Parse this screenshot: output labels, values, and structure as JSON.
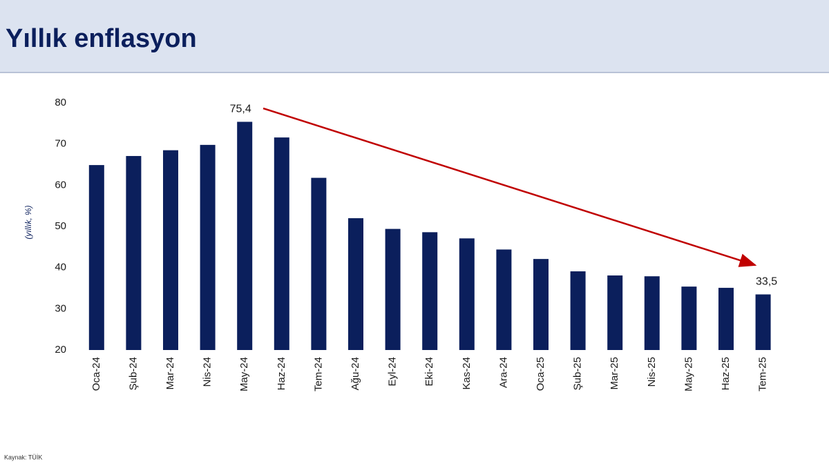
{
  "header": {
    "title": "Yıllık enflasyon"
  },
  "chart_data": {
    "type": "bar",
    "y_axis_label": "(yıllık, %)",
    "categories": [
      "Oca-24",
      "Şub-24",
      "Mar-24",
      "Nis-24",
      "May-24",
      "Haz-24",
      "Tem-24",
      "Ağu-24",
      "Eyl-24",
      "Eki-24",
      "Kas-24",
      "Ara-24",
      "Oca-25",
      "Şub-25",
      "Mar-25",
      "Nis-25",
      "May-25",
      "Haz-25",
      "Tem-25"
    ],
    "values": [
      64.9,
      67.1,
      68.5,
      69.8,
      75.4,
      71.6,
      61.8,
      52.0,
      49.4,
      48.6,
      47.1,
      44.4,
      42.1,
      39.1,
      38.1,
      37.9,
      35.4,
      35.1,
      33.5
    ],
    "value_labels": [
      null,
      null,
      null,
      null,
      "75,4",
      null,
      null,
      null,
      null,
      null,
      null,
      null,
      null,
      null,
      null,
      null,
      null,
      null,
      "33,5"
    ],
    "color": "#0b1f5c",
    "ylim": [
      20,
      80
    ],
    "yticks": [
      20,
      30,
      40,
      50,
      60,
      70,
      80
    ],
    "grid": false
  },
  "footer": {
    "source": "Kaynak: TÜİK"
  }
}
